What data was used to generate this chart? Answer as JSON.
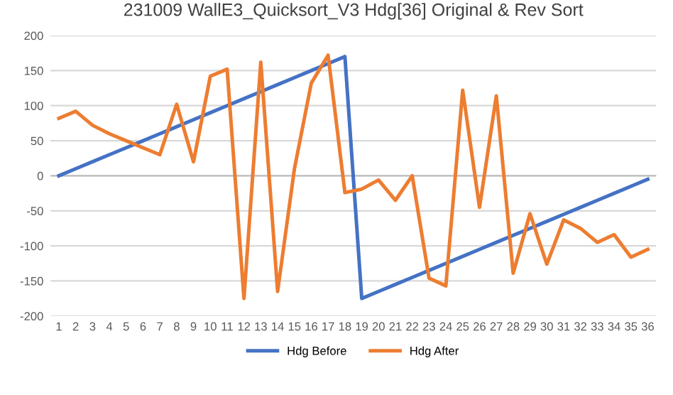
{
  "chart_data": {
    "type": "line",
    "title": "231009 WallE3_Quicksort_V3 Hdg[36] Original & Rev Sort",
    "categories": [
      "1",
      "2",
      "3",
      "4",
      "5",
      "6",
      "7",
      "8",
      "9",
      "10",
      "11",
      "12",
      "13",
      "14",
      "15",
      "16",
      "17",
      "18",
      "19",
      "20",
      "21",
      "22",
      "23",
      "24",
      "25",
      "26",
      "27",
      "28",
      "29",
      "30",
      "31",
      "32",
      "33",
      "34",
      "35",
      "36"
    ],
    "series": [
      {
        "name": "Hdg Before",
        "color": "#4472c4",
        "values": [
          0,
          10,
          20,
          30,
          40,
          50,
          60,
          70,
          80,
          90,
          100,
          110,
          120,
          130,
          140,
          150,
          160,
          170,
          -175,
          -165,
          -155,
          -145,
          -135,
          -125,
          -115,
          -105,
          -95,
          -85,
          -75,
          -65,
          -55,
          -45,
          -35,
          -25,
          -15,
          -5
        ]
      },
      {
        "name": "Hdg After",
        "color": "#ed7d31",
        "values": [
          82,
          92,
          72,
          60,
          50,
          40,
          30,
          102,
          20,
          142,
          152,
          -175,
          162,
          -165,
          10,
          132,
          172,
          -24,
          -19,
          -6,
          -35,
          0,
          -146,
          -157,
          122,
          -45,
          114,
          -139,
          -54,
          -126,
          -63,
          -75,
          -95,
          -84,
          -116,
          -105
        ]
      }
    ],
    "ylim": [
      -200,
      200
    ],
    "yticks": [
      -200,
      -150,
      -100,
      -50,
      0,
      50,
      100,
      150,
      200
    ],
    "grid": "y",
    "legend": "bottom",
    "marker": "none",
    "line_style": "solid"
  }
}
